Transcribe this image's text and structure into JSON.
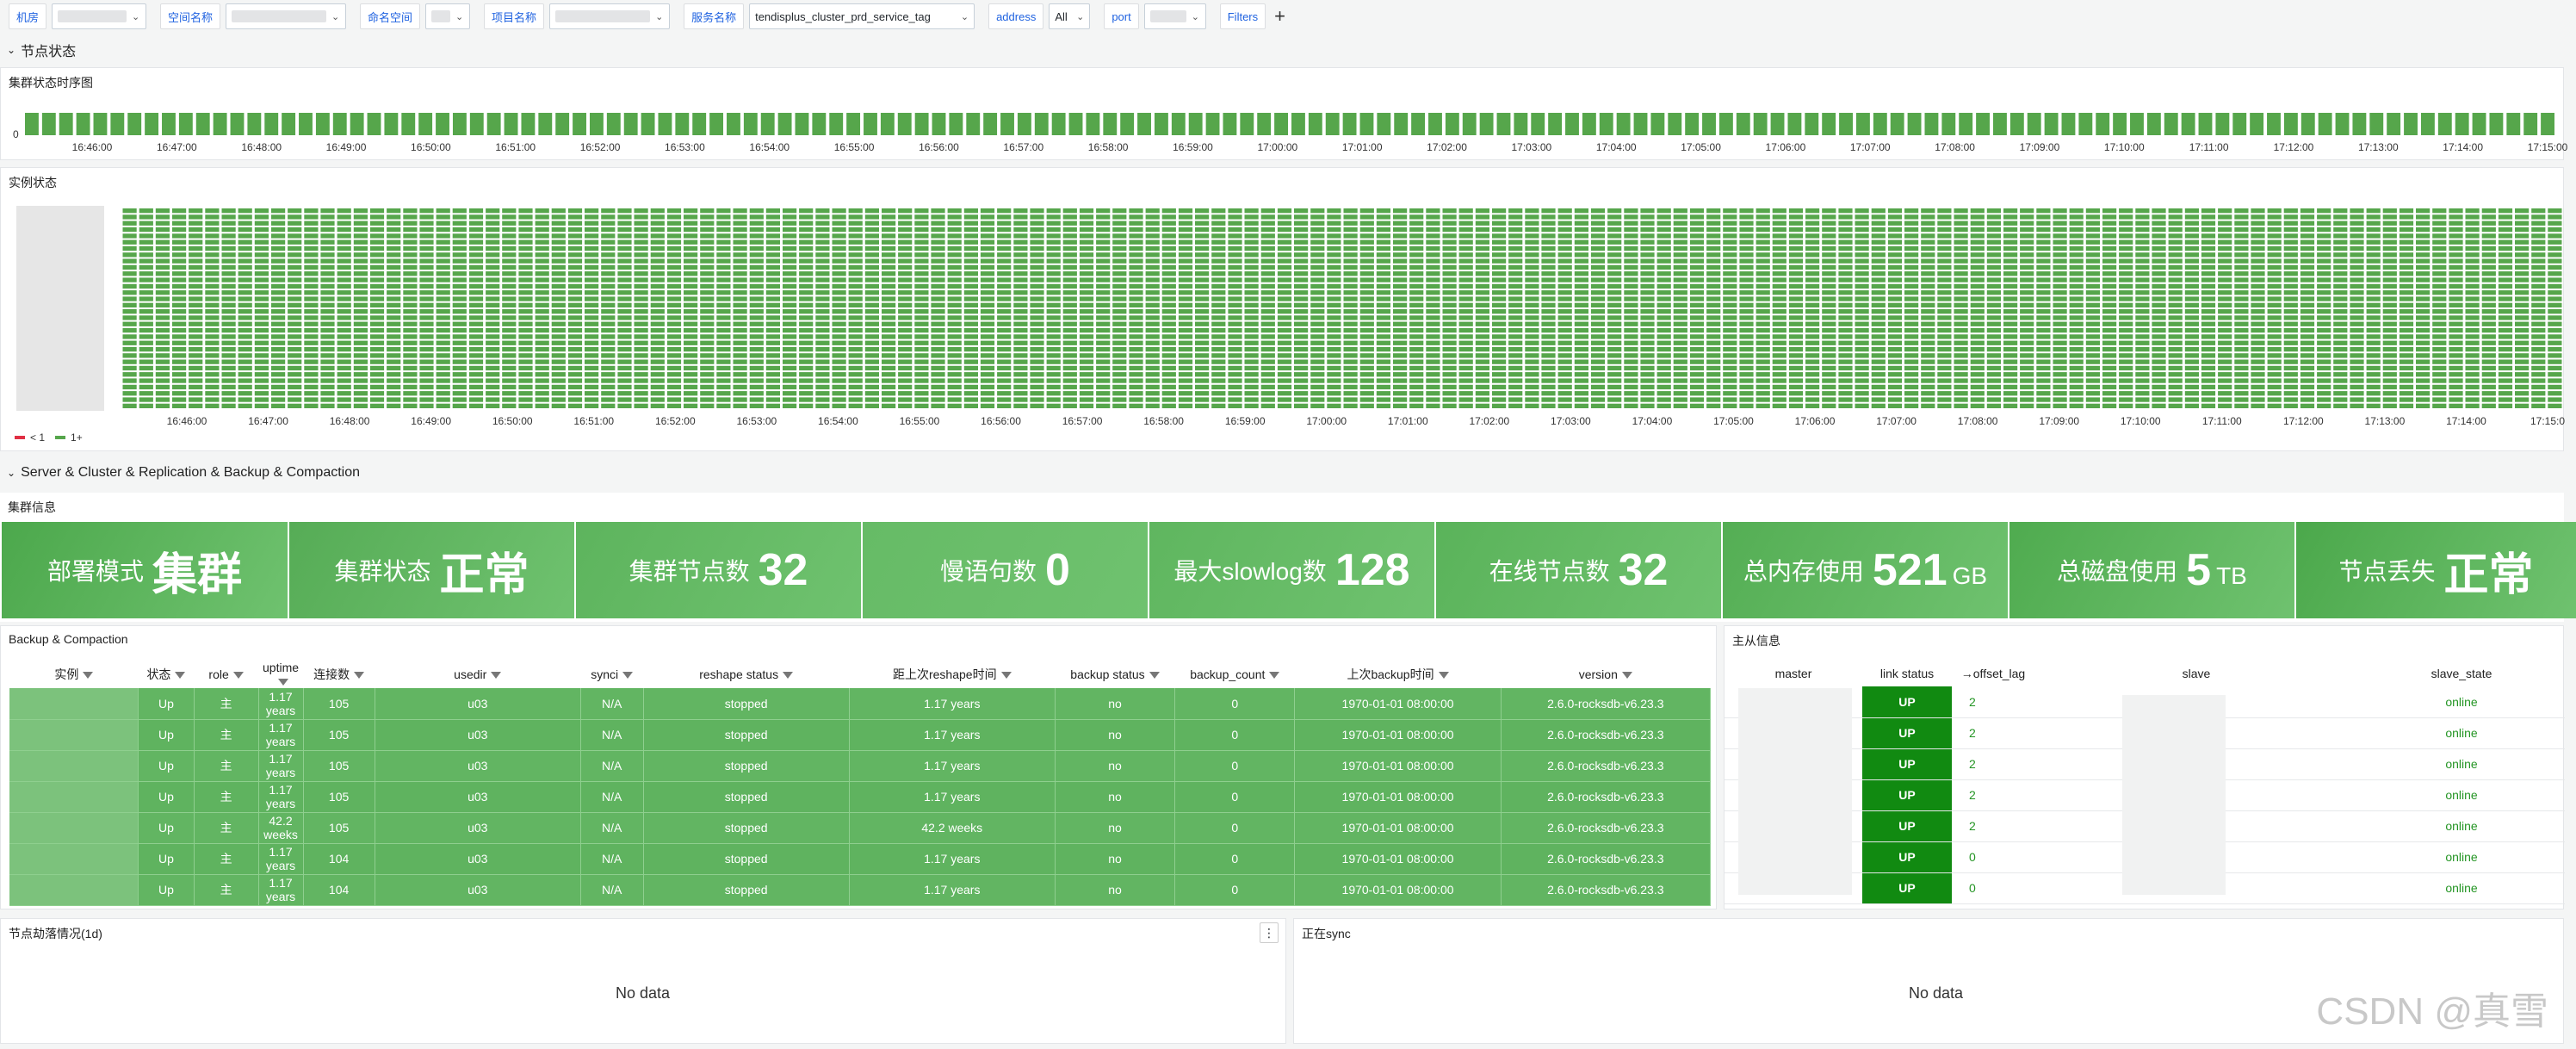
{
  "variables": {
    "items": [
      {
        "label": "机房",
        "value": ""
      },
      {
        "label": "空间名称",
        "value": ""
      },
      {
        "label": "命名空间",
        "value": ""
      },
      {
        "label": "项目名称",
        "value": ""
      },
      {
        "label": "服务名称",
        "value": "tendisplus_cluster_prd_service_tag"
      },
      {
        "label": "address",
        "value": "All"
      },
      {
        "label": "port",
        "value": ""
      },
      {
        "label": "Filters",
        "value": ""
      }
    ],
    "add_label": "+"
  },
  "row1": {
    "title": "节点状态"
  },
  "cluster_timeline": {
    "title": "集群状态时序图",
    "y_label": "0",
    "time_ticks": [
      "16:46:00",
      "16:47:00",
      "16:48:00",
      "16:49:00",
      "16:50:00",
      "16:51:00",
      "16:52:00",
      "16:53:00",
      "16:54:00",
      "16:55:00",
      "16:56:00",
      "16:57:00",
      "16:58:00",
      "16:59:00",
      "17:00:00",
      "17:01:00",
      "17:02:00",
      "17:03:00",
      "17:04:00",
      "17:05:00",
      "17:06:00",
      "17:07:00",
      "17:08:00",
      "17:09:00",
      "17:10:00",
      "17:11:00",
      "17:12:00",
      "17:13:00",
      "17:14:00",
      "17:15:00"
    ],
    "color_ok": "#56a64b"
  },
  "instance_timeline": {
    "title": "实例状态",
    "time_ticks": [
      "16:46:00",
      "16:47:00",
      "16:48:00",
      "16:49:00",
      "16:50:00",
      "16:51:00",
      "16:52:00",
      "16:53:00",
      "16:54:00",
      "16:55:00",
      "16:56:00",
      "16:57:00",
      "16:58:00",
      "16:59:00",
      "17:00:00",
      "17:01:00",
      "17:02:00",
      "17:03:00",
      "17:04:00",
      "17:05:00",
      "17:06:00",
      "17:07:00",
      "17:08:00",
      "17:09:00",
      "17:10:00",
      "17:11:00",
      "17:12:00",
      "17:13:00",
      "17:14:00",
      "17:15:0"
    ],
    "legend": [
      {
        "label": "< 1",
        "color": "#e02f44"
      },
      {
        "label": "1+",
        "color": "#56a64b"
      }
    ]
  },
  "row2": {
    "title": "Server & Cluster & Replication & Backup & Compaction"
  },
  "cluster_info": {
    "title": "集群信息",
    "stats": [
      {
        "label": "部署模式",
        "value": "集群",
        "unit": ""
      },
      {
        "label": "集群状态",
        "value": "正常",
        "unit": ""
      },
      {
        "label": "集群节点数",
        "value": "32",
        "unit": ""
      },
      {
        "label": "慢语句数",
        "value": "0",
        "unit": ""
      },
      {
        "label": "最大slowlog数",
        "value": "128",
        "unit": ""
      },
      {
        "label": "在线节点数",
        "value": "32",
        "unit": ""
      },
      {
        "label": "总内存使用",
        "value": "521",
        "unit": "GB"
      },
      {
        "label": "总磁盘使用",
        "value": "5",
        "unit": "TB"
      },
      {
        "label": "节点丢失",
        "value": "正常",
        "unit": ""
      }
    ]
  },
  "backup": {
    "title": "Backup & Compaction",
    "columns": [
      "实例",
      "状态",
      "role",
      "uptime",
      "连接数",
      "usedir",
      "synci",
      "reshape status",
      "距上次reshape时间",
      "backup status",
      "backup_count",
      "上次backup时间",
      "version"
    ],
    "rows": [
      [
        "",
        "Up",
        "主",
        "1.17 years",
        "105",
        "u03",
        "N/A",
        "stopped",
        "1.17 years",
        "no",
        "0",
        "1970-01-01 08:00:00",
        "2.6.0-rocksdb-v6.23.3"
      ],
      [
        "",
        "Up",
        "主",
        "1.17 years",
        "105",
        "u03",
        "N/A",
        "stopped",
        "1.17 years",
        "no",
        "0",
        "1970-01-01 08:00:00",
        "2.6.0-rocksdb-v6.23.3"
      ],
      [
        "",
        "Up",
        "主",
        "1.17 years",
        "105",
        "u03",
        "N/A",
        "stopped",
        "1.17 years",
        "no",
        "0",
        "1970-01-01 08:00:00",
        "2.6.0-rocksdb-v6.23.3"
      ],
      [
        "",
        "Up",
        "主",
        "1.17 years",
        "105",
        "u03",
        "N/A",
        "stopped",
        "1.17 years",
        "no",
        "0",
        "1970-01-01 08:00:00",
        "2.6.0-rocksdb-v6.23.3"
      ],
      [
        "",
        "Up",
        "主",
        "42.2 weeks",
        "105",
        "u03",
        "N/A",
        "stopped",
        "42.2 weeks",
        "no",
        "0",
        "1970-01-01 08:00:00",
        "2.6.0-rocksdb-v6.23.3"
      ],
      [
        "",
        "Up",
        "主",
        "1.17 years",
        "104",
        "u03",
        "N/A",
        "stopped",
        "1.17 years",
        "no",
        "0",
        "1970-01-01 08:00:00",
        "2.6.0-rocksdb-v6.23.3"
      ],
      [
        "",
        "Up",
        "主",
        "1.17 years",
        "104",
        "u03",
        "N/A",
        "stopped",
        "1.17 years",
        "no",
        "0",
        "1970-01-01 08:00:00",
        "2.6.0-rocksdb-v6.23.3"
      ]
    ]
  },
  "replication": {
    "title": "主从信息",
    "columns": [
      "master",
      "link status",
      "offset_lag",
      "slave",
      "slave_state"
    ],
    "rows": [
      [
        "",
        "UP",
        "2",
        "",
        "online"
      ],
      [
        "",
        "UP",
        "2",
        "",
        "online"
      ],
      [
        "",
        "UP",
        "2",
        "",
        "online"
      ],
      [
        "",
        "UP",
        "2",
        "",
        "online"
      ],
      [
        "",
        "UP",
        "2",
        "",
        "online"
      ],
      [
        "",
        "UP",
        "0",
        "",
        "online"
      ],
      [
        "",
        "UP",
        "0",
        "",
        "online"
      ]
    ]
  },
  "node_drop": {
    "title": "节点劫落情况(1d)",
    "empty": "No data"
  },
  "syncing": {
    "title": "正在sync",
    "empty": "No data"
  },
  "watermark": "CSDN @真雪"
}
